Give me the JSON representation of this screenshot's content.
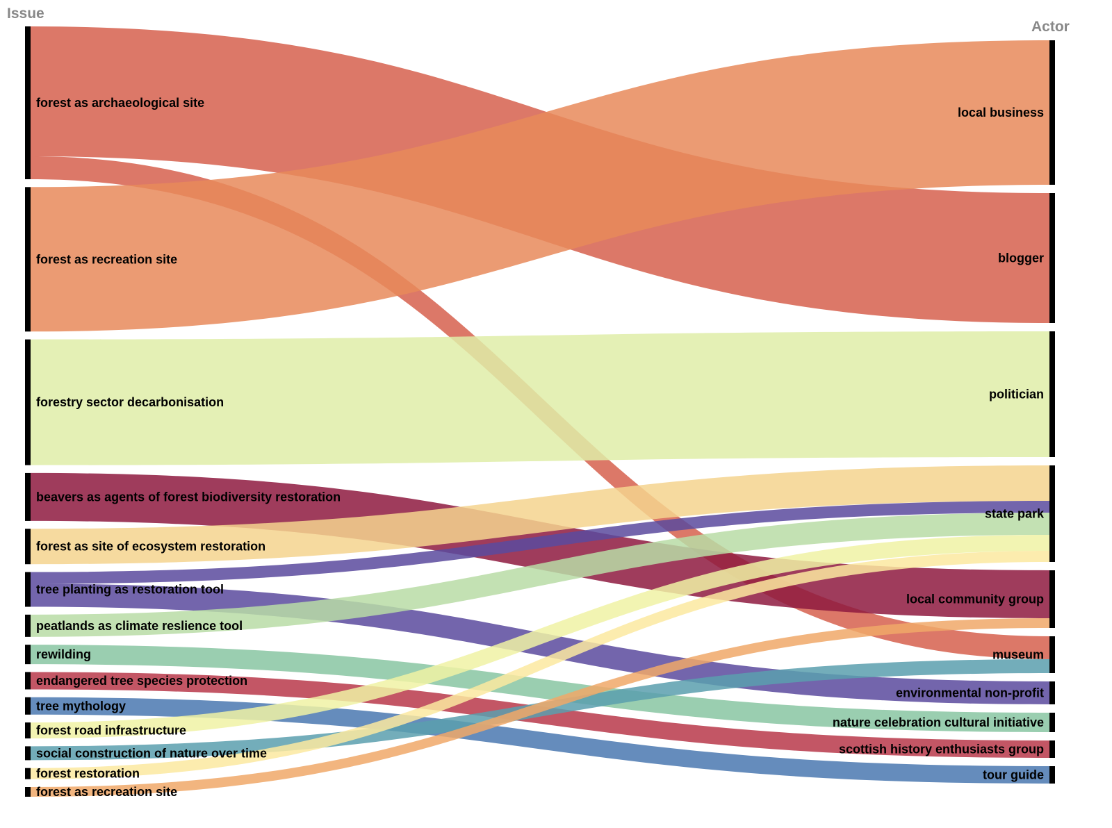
{
  "headers": {
    "left": "Issue",
    "right": "Actor"
  },
  "chart_data": {
    "type": "sankey",
    "left_nodes": [
      {
        "id": "archaeo",
        "label": "forest as archaeological site"
      },
      {
        "id": "recreation",
        "label": "forest as recreation site"
      },
      {
        "id": "decarb",
        "label": "forestry sector decarbonisation"
      },
      {
        "id": "beavers",
        "label": "beavers as agents of forest biodiversity restoration"
      },
      {
        "id": "ecosystem",
        "label": "forest as site of ecosystem restoration"
      },
      {
        "id": "treeplanting",
        "label": "tree planting as restoration tool"
      },
      {
        "id": "peatlands",
        "label": "peatlands as climate reslience tool"
      },
      {
        "id": "rewilding",
        "label": "rewilding"
      },
      {
        "id": "endangered",
        "label": "endangered tree species protection"
      },
      {
        "id": "mythology",
        "label": "tree mythology"
      },
      {
        "id": "road",
        "label": "forest road infrastructure"
      },
      {
        "id": "social",
        "label": "social construction of nature over time"
      },
      {
        "id": "restoration",
        "label": "forest restoration"
      },
      {
        "id": "recreation2",
        "label": "forest as recreation site"
      }
    ],
    "right_nodes": [
      {
        "id": "localbusiness",
        "label": "local business"
      },
      {
        "id": "blogger",
        "label": "blogger"
      },
      {
        "id": "politician",
        "label": "politician"
      },
      {
        "id": "statepark",
        "label": "state park"
      },
      {
        "id": "lcg",
        "label": "local community group"
      },
      {
        "id": "museum",
        "label": "museum"
      },
      {
        "id": "envnp",
        "label": "environmental non-profit"
      },
      {
        "id": "naturecult",
        "label": "nature celebration cultural initiative"
      },
      {
        "id": "scottish",
        "label": "scottish history enthusiasts group"
      },
      {
        "id": "tourguide",
        "label": "tour guide"
      }
    ],
    "links": [
      {
        "source": "archaeo",
        "target": "blogger",
        "value": 187,
        "color": "#d6604d"
      },
      {
        "source": "archaeo",
        "target": "museum",
        "value": 33,
        "color": "#d6604d"
      },
      {
        "source": "recreation",
        "target": "localbusiness",
        "value": 208,
        "color": "#e8895a"
      },
      {
        "source": "decarb",
        "target": "politician",
        "value": 181,
        "color": "#dfeda8"
      },
      {
        "source": "beavers",
        "target": "lcg",
        "value": 69,
        "color": "#8e1a40"
      },
      {
        "source": "ecosystem",
        "target": "statepark",
        "value": 51,
        "color": "#f5d48e"
      },
      {
        "source": "treeplanting",
        "target": "statepark",
        "value": 17,
        "color": "#5a4a9e"
      },
      {
        "source": "treeplanting",
        "target": "envnp",
        "value": 33,
        "color": "#5a4a9e"
      },
      {
        "source": "peatlands",
        "target": "statepark",
        "value": 32,
        "color": "#b8dca6"
      },
      {
        "source": "rewilding",
        "target": "naturecult",
        "value": 28,
        "color": "#88c6a2"
      },
      {
        "source": "endangered",
        "target": "scottish",
        "value": 25,
        "color": "#b8384a"
      },
      {
        "source": "mythology",
        "target": "tourguide",
        "value": 25,
        "color": "#4a78b0"
      },
      {
        "source": "road",
        "target": "statepark",
        "value": 23,
        "color": "#f0f2a4"
      },
      {
        "source": "social",
        "target": "museum",
        "value": 20,
        "color": "#5a9fae"
      },
      {
        "source": "restoration",
        "target": "statepark",
        "value": 16,
        "color": "#fbe9a0"
      },
      {
        "source": "recreation2",
        "target": "lcg",
        "value": 14,
        "color": "#f0a868"
      }
    ]
  }
}
